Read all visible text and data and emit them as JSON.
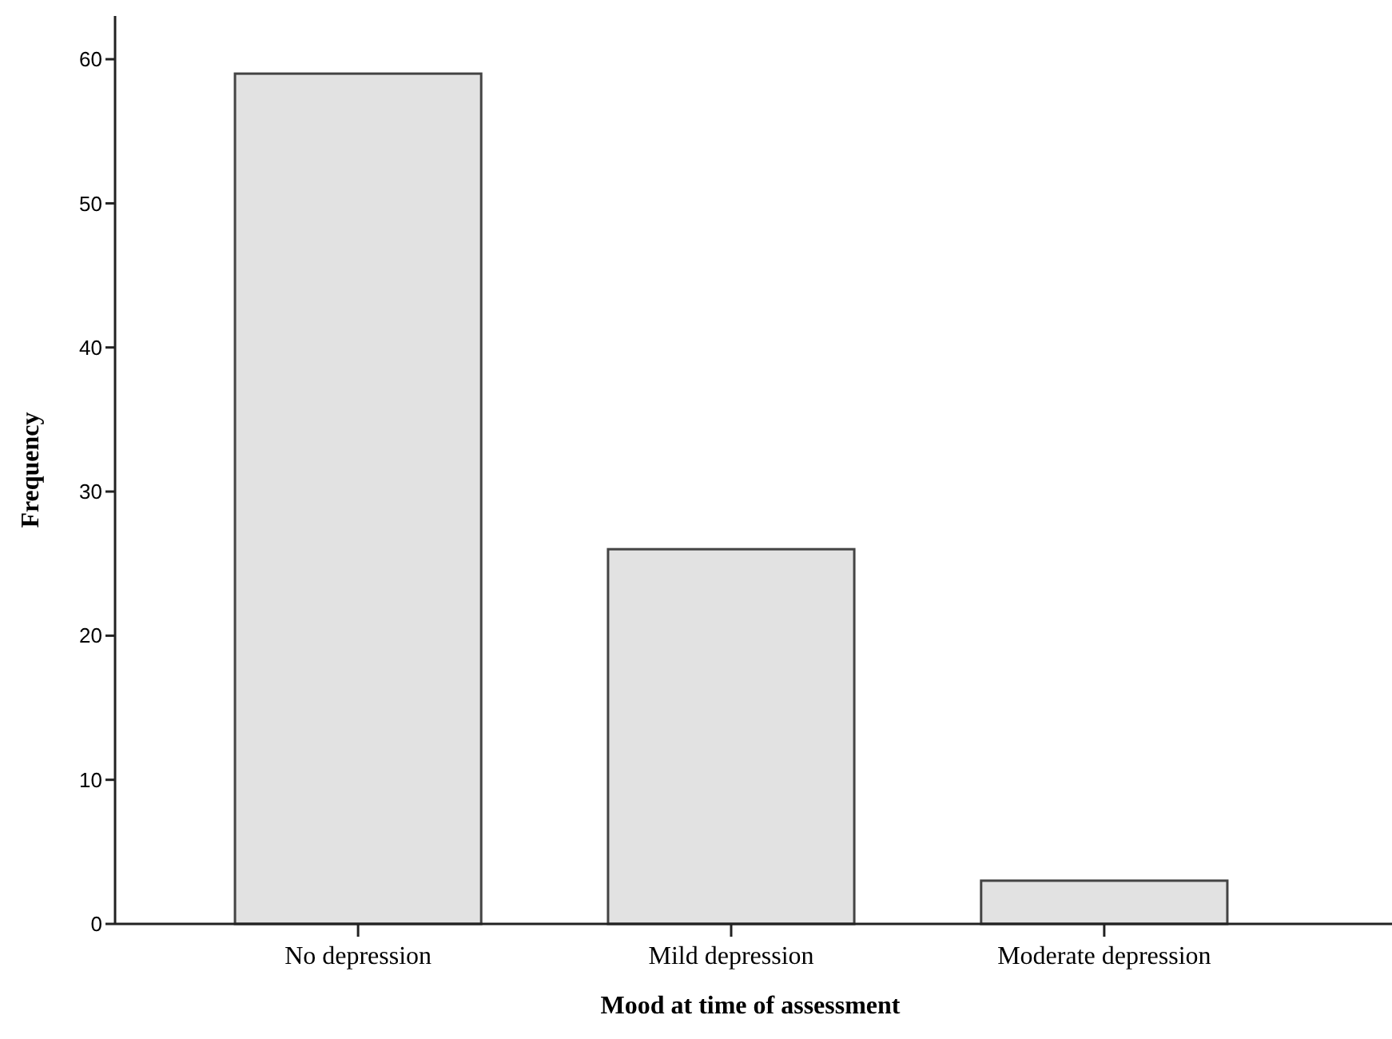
{
  "chart_data": {
    "type": "bar",
    "xlabel": "Mood at time of assessment",
    "ylabel": "Frequency",
    "categories": [
      "No depression",
      "Mild depression",
      "Moderate depression"
    ],
    "values": [
      59,
      26,
      3
    ],
    "color": "#e2e2e2",
    "ylim": [
      0,
      63
    ],
    "yticks": [
      0,
      10,
      20,
      30,
      40,
      50,
      60
    ],
    "grid": false
  }
}
